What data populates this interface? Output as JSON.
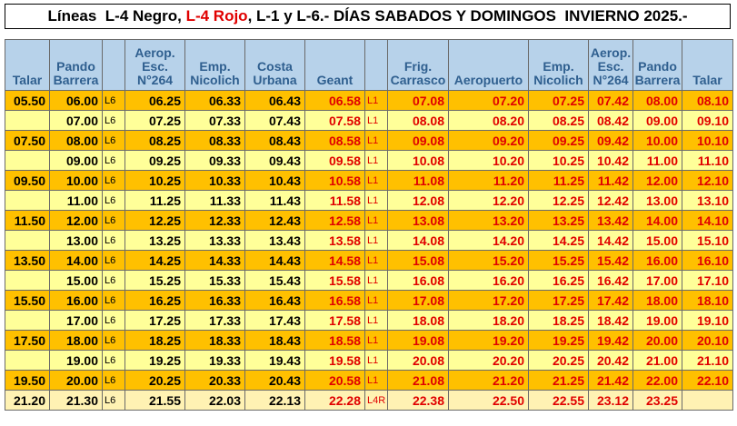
{
  "title": {
    "part1": "Líneas  L-4 Negro, ",
    "part2": "L-4 Rojo",
    "part3": ", L-1 y L-6.- DÍAS SABADOS Y DOMINGOS  INVIERNO 2025.-"
  },
  "colors": {
    "header_bg": "#b7d2ea",
    "header_text": "#2f5f8f",
    "row_dark": "#ffc000",
    "row_light": "#ffff99",
    "red_text": "#e00000"
  },
  "columns": [
    {
      "label": "Talar",
      "color": "black"
    },
    {
      "label": "Pando\nBarrera",
      "color": "black"
    },
    {
      "label": "",
      "color": "black"
    },
    {
      "label": "Aerop.\nEsc.\nN°264",
      "color": "black"
    },
    {
      "label": "Emp.\nNicolich",
      "color": "black"
    },
    {
      "label": "Costa\nUrbana",
      "color": "black"
    },
    {
      "label": "Geant",
      "color": "red"
    },
    {
      "label": "",
      "color": "red"
    },
    {
      "label": "Frig.\nCarrasco",
      "color": "red"
    },
    {
      "label": "Aeropuerto",
      "color": "red"
    },
    {
      "label": "Emp.\nNicolich",
      "color": "red"
    },
    {
      "label": "Aerop.\nEsc.\nN°264",
      "color": "red"
    },
    {
      "label": "Pando\nBarrera",
      "color": "red"
    },
    {
      "label": "Talar",
      "color": "red"
    }
  ],
  "rows": [
    {
      "shade": "dark",
      "cells": [
        "05.50",
        "06.00",
        "L6",
        "06.25",
        "06.33",
        "06.43",
        "06.58",
        "L1",
        "07.08",
        "07.20",
        "07.25",
        "07.42",
        "08.00",
        "08.10"
      ]
    },
    {
      "shade": "light",
      "cells": [
        "",
        "07.00",
        "L6",
        "07.25",
        "07.33",
        "07.43",
        "07.58",
        "L1",
        "08.08",
        "08.20",
        "08.25",
        "08.42",
        "09.00",
        "09.10"
      ]
    },
    {
      "shade": "dark",
      "cells": [
        "07.50",
        "08.00",
        "L6",
        "08.25",
        "08.33",
        "08.43",
        "08.58",
        "L1",
        "09.08",
        "09.20",
        "09.25",
        "09.42",
        "10.00",
        "10.10"
      ]
    },
    {
      "shade": "light",
      "cells": [
        "",
        "09.00",
        "L6",
        "09.25",
        "09.33",
        "09.43",
        "09.58",
        "L1",
        "10.08",
        "10.20",
        "10.25",
        "10.42",
        "11.00",
        "11.10"
      ]
    },
    {
      "shade": "dark",
      "cells": [
        "09.50",
        "10.00",
        "L6",
        "10.25",
        "10.33",
        "10.43",
        "10.58",
        "L1",
        "11.08",
        "11.20",
        "11.25",
        "11.42",
        "12.00",
        "12.10"
      ]
    },
    {
      "shade": "light",
      "cells": [
        "",
        "11.00",
        "L6",
        "11.25",
        "11.33",
        "11.43",
        "11.58",
        "L1",
        "12.08",
        "12.20",
        "12.25",
        "12.42",
        "13.00",
        "13.10"
      ]
    },
    {
      "shade": "dark",
      "cells": [
        "11.50",
        "12.00",
        "L6",
        "12.25",
        "12.33",
        "12.43",
        "12.58",
        "L1",
        "13.08",
        "13.20",
        "13.25",
        "13.42",
        "14.00",
        "14.10"
      ]
    },
    {
      "shade": "light",
      "cells": [
        "",
        "13.00",
        "L6",
        "13.25",
        "13.33",
        "13.43",
        "13.58",
        "L1",
        "14.08",
        "14.20",
        "14.25",
        "14.42",
        "15.00",
        "15.10"
      ]
    },
    {
      "shade": "dark",
      "cells": [
        "13.50",
        "14.00",
        "L6",
        "14.25",
        "14.33",
        "14.43",
        "14.58",
        "L1",
        "15.08",
        "15.20",
        "15.25",
        "15.42",
        "16.00",
        "16.10"
      ]
    },
    {
      "shade": "light",
      "cells": [
        "",
        "15.00",
        "L6",
        "15.25",
        "15.33",
        "15.43",
        "15.58",
        "L1",
        "16.08",
        "16.20",
        "16.25",
        "16.42",
        "17.00",
        "17.10"
      ]
    },
    {
      "shade": "dark",
      "cells": [
        "15.50",
        "16.00",
        "L6",
        "16.25",
        "16.33",
        "16.43",
        "16.58",
        "L1",
        "17.08",
        "17.20",
        "17.25",
        "17.42",
        "18.00",
        "18.10"
      ]
    },
    {
      "shade": "light",
      "cells": [
        "",
        "17.00",
        "L6",
        "17.25",
        "17.33",
        "17.43",
        "17.58",
        "L1",
        "18.08",
        "18.20",
        "18.25",
        "18.42",
        "19.00",
        "19.10"
      ]
    },
    {
      "shade": "dark",
      "cells": [
        "17.50",
        "18.00",
        "L6",
        "18.25",
        "18.33",
        "18.43",
        "18.58",
        "L1",
        "19.08",
        "19.20",
        "19.25",
        "19.42",
        "20.00",
        "20.10"
      ]
    },
    {
      "shade": "light",
      "cells": [
        "",
        "19.00",
        "L6",
        "19.25",
        "19.33",
        "19.43",
        "19.58",
        "L1",
        "20.08",
        "20.20",
        "20.25",
        "20.42",
        "21.00",
        "21.10"
      ]
    },
    {
      "shade": "dark",
      "cells": [
        "19.50",
        "20.00",
        "L6",
        "20.25",
        "20.33",
        "20.43",
        "20.58",
        "L1",
        "21.08",
        "21.20",
        "21.25",
        "21.42",
        "22.00",
        "22.10"
      ]
    },
    {
      "shade": "last",
      "cells": [
        "21.20",
        "21.30",
        "L6",
        "21.55",
        "22.03",
        "22.13",
        "22.28",
        "L4R",
        "22.38",
        "22.50",
        "22.55",
        "23.12",
        "23.25",
        ""
      ]
    }
  ]
}
